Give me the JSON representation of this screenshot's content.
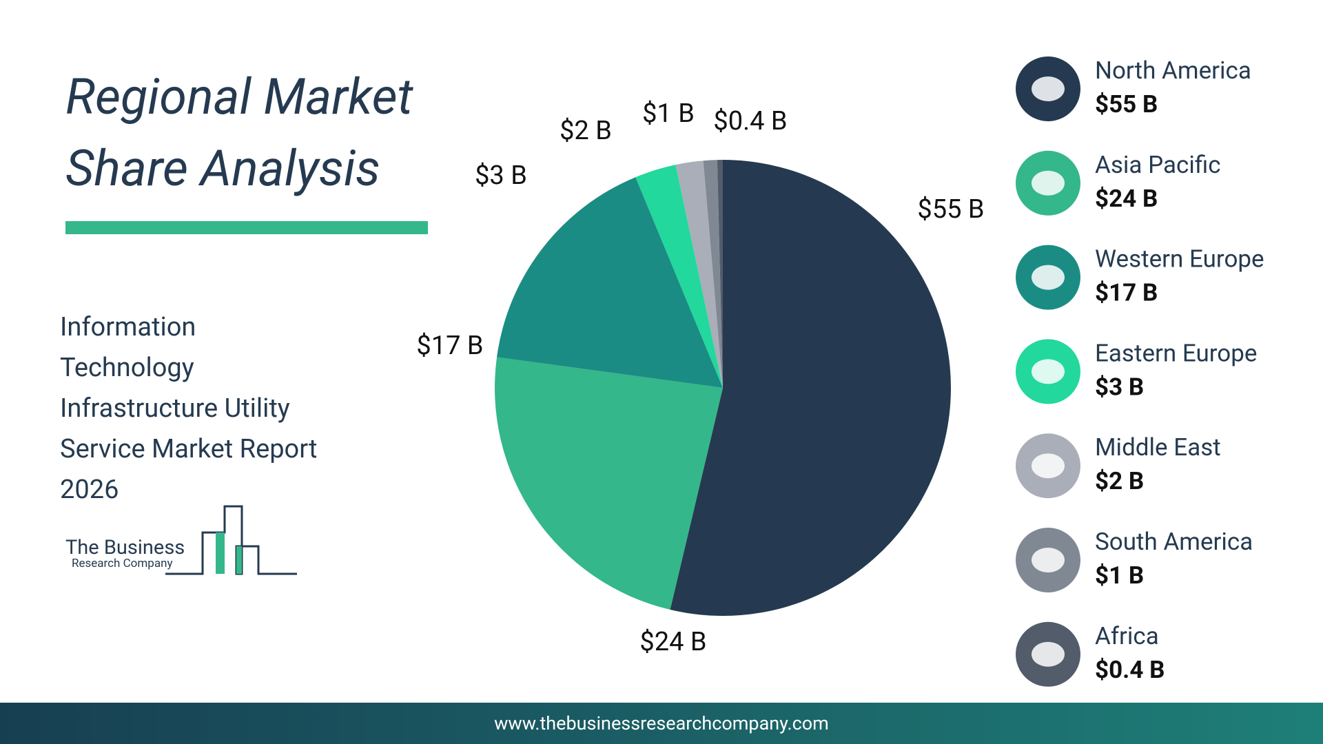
{
  "title": "Regional Market Share Analysis",
  "subtitle": "Information Technology Infrastructure Utility Service Market Report 2026",
  "logo": {
    "name": "The Business",
    "tagline": "Research Company"
  },
  "footer": "www.thebusinessresearchcompany.com",
  "chart_data": {
    "type": "pie",
    "categories": [
      "North America",
      "Asia Pacific",
      "Western Europe",
      "Eastern Europe",
      "Middle East",
      "South America",
      "Africa"
    ],
    "values": [
      55,
      24,
      17,
      3,
      2,
      1,
      0.4
    ],
    "value_labels": [
      "$55 B",
      "$24 B",
      "$17 B",
      "$3 B",
      "$2 B",
      "$1 B",
      "$0.4 B"
    ],
    "colors": [
      "#253a50",
      "#34b78a",
      "#1b8c84",
      "#22d89c",
      "#a9aeb8",
      "#808894",
      "#525c6a"
    ]
  }
}
